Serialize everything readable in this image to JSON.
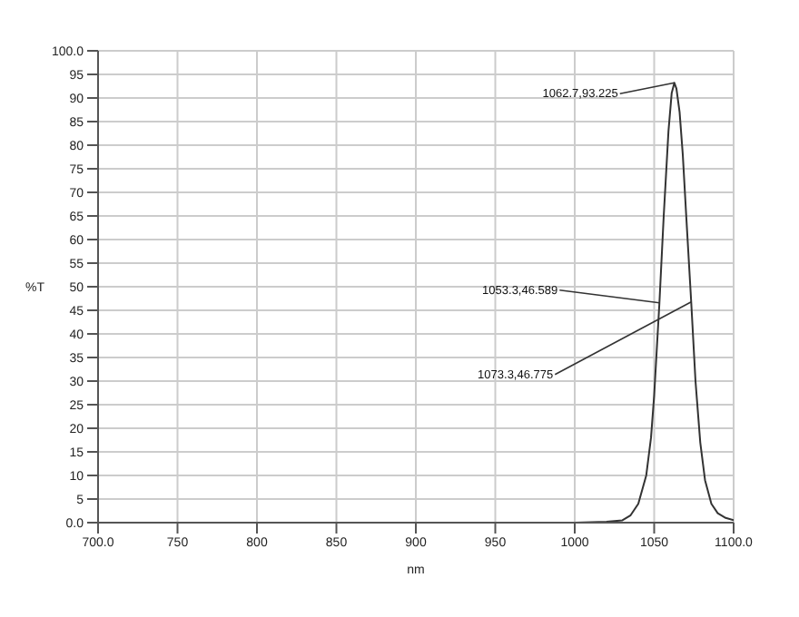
{
  "chart_data": {
    "type": "line",
    "xlabel": "nm",
    "ylabel": "%T",
    "x": [
      700,
      1000,
      1020,
      1030,
      1035,
      1040,
      1045,
      1048,
      1050,
      1053.3,
      1056,
      1059,
      1061,
      1062.7,
      1064,
      1066,
      1068,
      1070,
      1073.3,
      1076,
      1079,
      1082,
      1086,
      1090,
      1095,
      1100
    ],
    "series": [
      {
        "color": "#333333",
        "values": [
          0,
          0,
          0.2,
          0.5,
          1.5,
          4,
          10,
          18,
          27,
          46.589,
          65,
          83,
          91,
          93.225,
          92,
          87,
          78,
          66,
          46.775,
          30,
          17,
          9,
          4,
          2,
          1,
          0.5
        ]
      }
    ],
    "xlim": [
      700,
      1100
    ],
    "xticks": [
      {
        "value": 700,
        "label": "700.0"
      },
      750,
      800,
      850,
      900,
      950,
      1000,
      1050,
      {
        "value": 1100,
        "label": "1100.0"
      }
    ],
    "ylim": [
      0,
      100
    ],
    "yticks": [
      {
        "value": 0,
        "label": "0.0"
      },
      5,
      10,
      15,
      20,
      25,
      30,
      35,
      40,
      45,
      50,
      55,
      60,
      65,
      70,
      75,
      80,
      85,
      90,
      95,
      {
        "value": 100,
        "label": "100.0"
      }
    ],
    "grid": true,
    "marker": "none",
    "line_style": "solid",
    "legend": false,
    "annotations": [
      {
        "text": "1062.7,93.225",
        "x": 1062.7,
        "y": 93.225
      },
      {
        "text": "1053.3,46.589",
        "x": 1053.3,
        "y": 46.589
      },
      {
        "text": "1073.3,46.775",
        "x": 1073.3,
        "y": 46.775
      }
    ]
  }
}
